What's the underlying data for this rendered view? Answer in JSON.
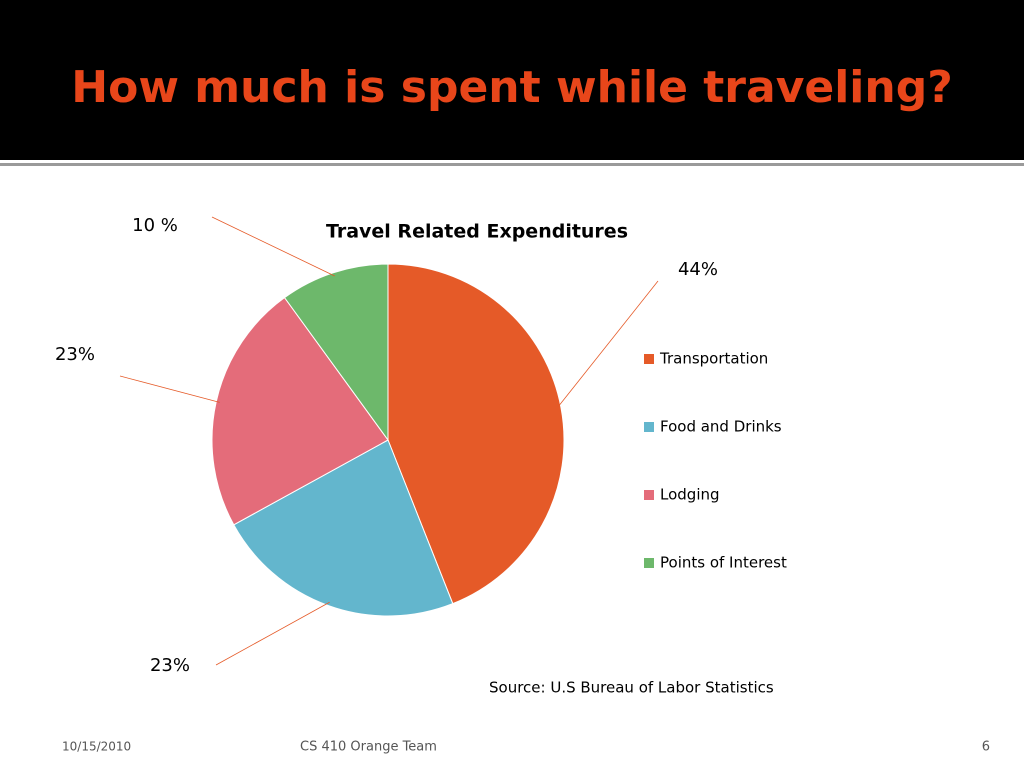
{
  "slide": {
    "title": "How much is spent while traveling?",
    "footer_date": "10/15/2010",
    "footer_team": "CS 410 Orange Team",
    "page_number": "6"
  },
  "chart_data": {
    "type": "pie",
    "title": "Travel Related Expenditures",
    "categories": [
      "Transportation",
      "Food and Drinks",
      "Lodging",
      "Points of Interest"
    ],
    "values": [
      44,
      23,
      23,
      10
    ],
    "value_labels": [
      "44%",
      "23%",
      "23%",
      "10 %"
    ],
    "colors": [
      "#e55a28",
      "#63b6cd",
      "#e46c7a",
      "#6db86b"
    ],
    "legend": "right",
    "annotation": "Source:  U.S Bureau of Labor Statistics"
  }
}
